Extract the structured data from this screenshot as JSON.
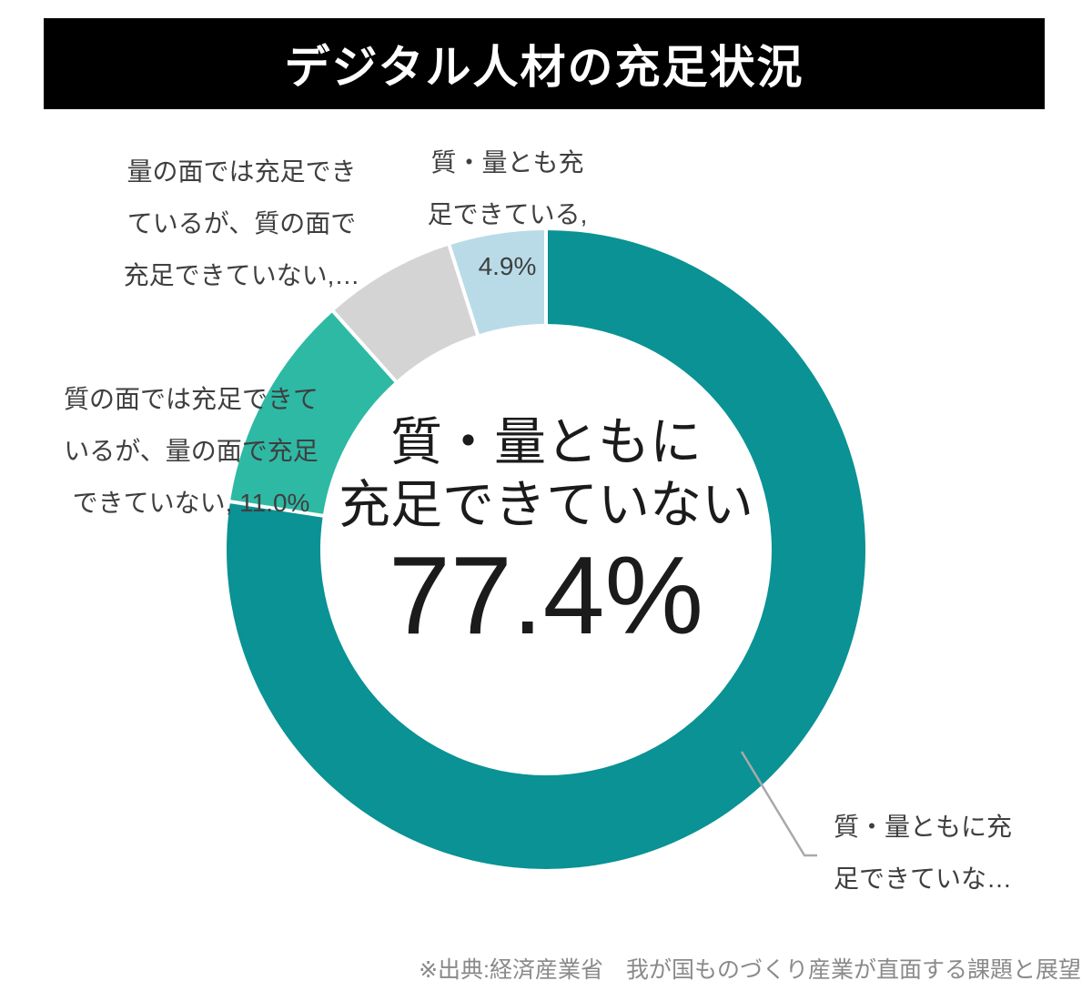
{
  "header": {
    "title": "デジタル人材の充足状況"
  },
  "chart_data": {
    "type": "pie",
    "subtype": "donut",
    "title": "デジタル人材の充足状況",
    "unit": "%",
    "start_angle_deg": 0,
    "direction": "clockwise",
    "legend_position": "none",
    "segments": [
      {
        "label": "質・量ともに充足できていない",
        "value": 77.4,
        "color": "#0A9294"
      },
      {
        "label": "質の面では充足できているが、量の面で充足できていない",
        "value": 11.0,
        "color": "#2EB9A5"
      },
      {
        "label": "量の面では充足できているが、質の面で充足できていない",
        "value": 6.7,
        "color": "#D4D4D4"
      },
      {
        "label": "質・量とも充足できている",
        "value": 4.9,
        "color": "#B9DBE7"
      }
    ],
    "center_text": {
      "line1": "質・量ともに",
      "line2": "充足できていない",
      "value": "77.4%"
    }
  },
  "callouts": {
    "quantity_sufficient": {
      "line1": "量の面では充足でき",
      "line2": "ているが、質の面で",
      "line3": "充足できていない,…"
    },
    "both_sufficient": {
      "line1": "質・量とも充",
      "line2": "足できている,",
      "line3": "4.9%"
    },
    "quality_sufficient": {
      "line1": "質の面では充足できて",
      "line2": "いるが、量の面で充足",
      "line3": "できていない, 11.0%"
    },
    "both_insufficient": {
      "line1": "質・量ともに充",
      "line2": "足できていな…"
    }
  },
  "source": "※出典:経済産業省　我が国ものづくり産業が直面する課題と展望",
  "colors": {
    "page_bg": "#ffffff",
    "title_bg": "#000000",
    "title_text": "#ffffff",
    "label_text": "#3f3f3f",
    "center_text": "#1b1b1b",
    "source_text": "#8a8a8a",
    "leader_line": "#a9a9a9",
    "divider": "#ffffff"
  }
}
